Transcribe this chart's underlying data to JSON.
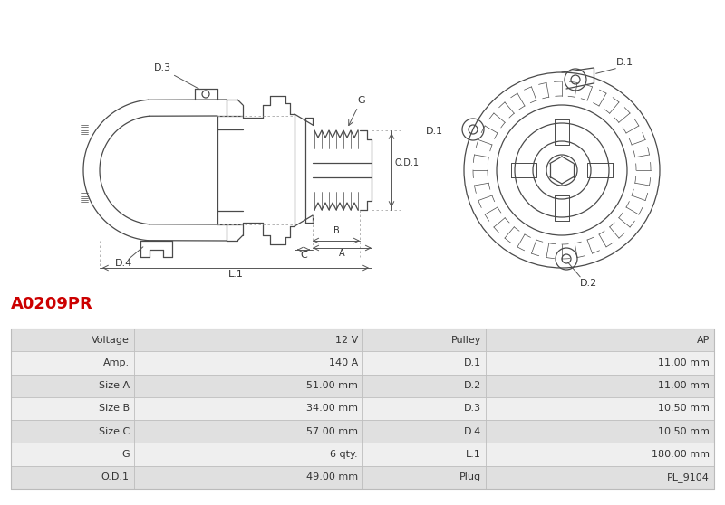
{
  "title": "A0209PR",
  "title_color": "#cc0000",
  "bg_color": "#ffffff",
  "diagram_line_color": "#4a4a4a",
  "table_data": [
    [
      "Voltage",
      "12 V",
      "Pulley",
      "AP"
    ],
    [
      "Amp.",
      "140 A",
      "D.1",
      "11.00 mm"
    ],
    [
      "Size A",
      "51.00 mm",
      "D.2",
      "11.00 mm"
    ],
    [
      "Size B",
      "34.00 mm",
      "D.3",
      "10.50 mm"
    ],
    [
      "Size C",
      "57.00 mm",
      "D.4",
      "10.50 mm"
    ],
    [
      "G",
      "6 qty.",
      "L.1",
      "180.00 mm"
    ],
    [
      "O.D.1",
      "49.00 mm",
      "Plug",
      "PL_9104"
    ]
  ],
  "table_row_colors": [
    "#e0e0e0",
    "#efefef"
  ],
  "table_border_color": "#bbbbbb",
  "table_text_color": "#333333",
  "figsize": [
    8.0,
    5.58
  ],
  "dpi": 100
}
